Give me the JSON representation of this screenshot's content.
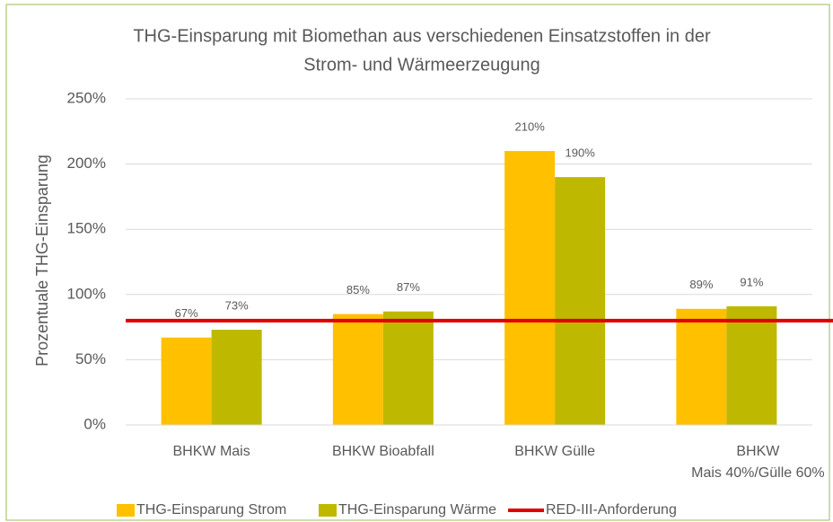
{
  "chart_data": {
    "type": "bar",
    "title": [
      "THG-Einsparung mit Biomethan aus verschiedenen Einsatzstoffen in der",
      "Strom- und Wärmeerzeugung"
    ],
    "ylabel": "Prozentuale THG-Einsparung",
    "categories": [
      [
        "BHKW Mais"
      ],
      [
        "BHKW Bioabfall"
      ],
      [
        "BHKW Gülle"
      ],
      [
        "BHKW",
        "Mais 40%/Gülle 60%"
      ]
    ],
    "series": [
      {
        "name": "THG-Einsparung Strom",
        "color": "#ffc000",
        "values": [
          67,
          85,
          210,
          89
        ],
        "value_labels": [
          "67%",
          "85%",
          "210%",
          "89%"
        ]
      },
      {
        "name": "THG-Einsparung Wärme",
        "color": "#bfb800",
        "values": [
          73,
          87,
          190,
          91
        ],
        "value_labels": [
          "73%",
          "87%",
          "190%",
          "91%"
        ]
      },
      {
        "name": "RED-III-Anforderung",
        "color": "#e00000",
        "type": "line",
        "value": 80
      }
    ],
    "ylim": [
      0,
      250
    ],
    "yticks": [
      {
        "value": 0,
        "label": "0%"
      },
      {
        "value": 50,
        "label": "50%"
      },
      {
        "value": 100,
        "label": "100%"
      },
      {
        "value": 150,
        "label": "150%"
      },
      {
        "value": 200,
        "label": "200%"
      },
      {
        "value": 250,
        "label": "250%"
      }
    ],
    "grid": true,
    "legend": "bottom"
  }
}
